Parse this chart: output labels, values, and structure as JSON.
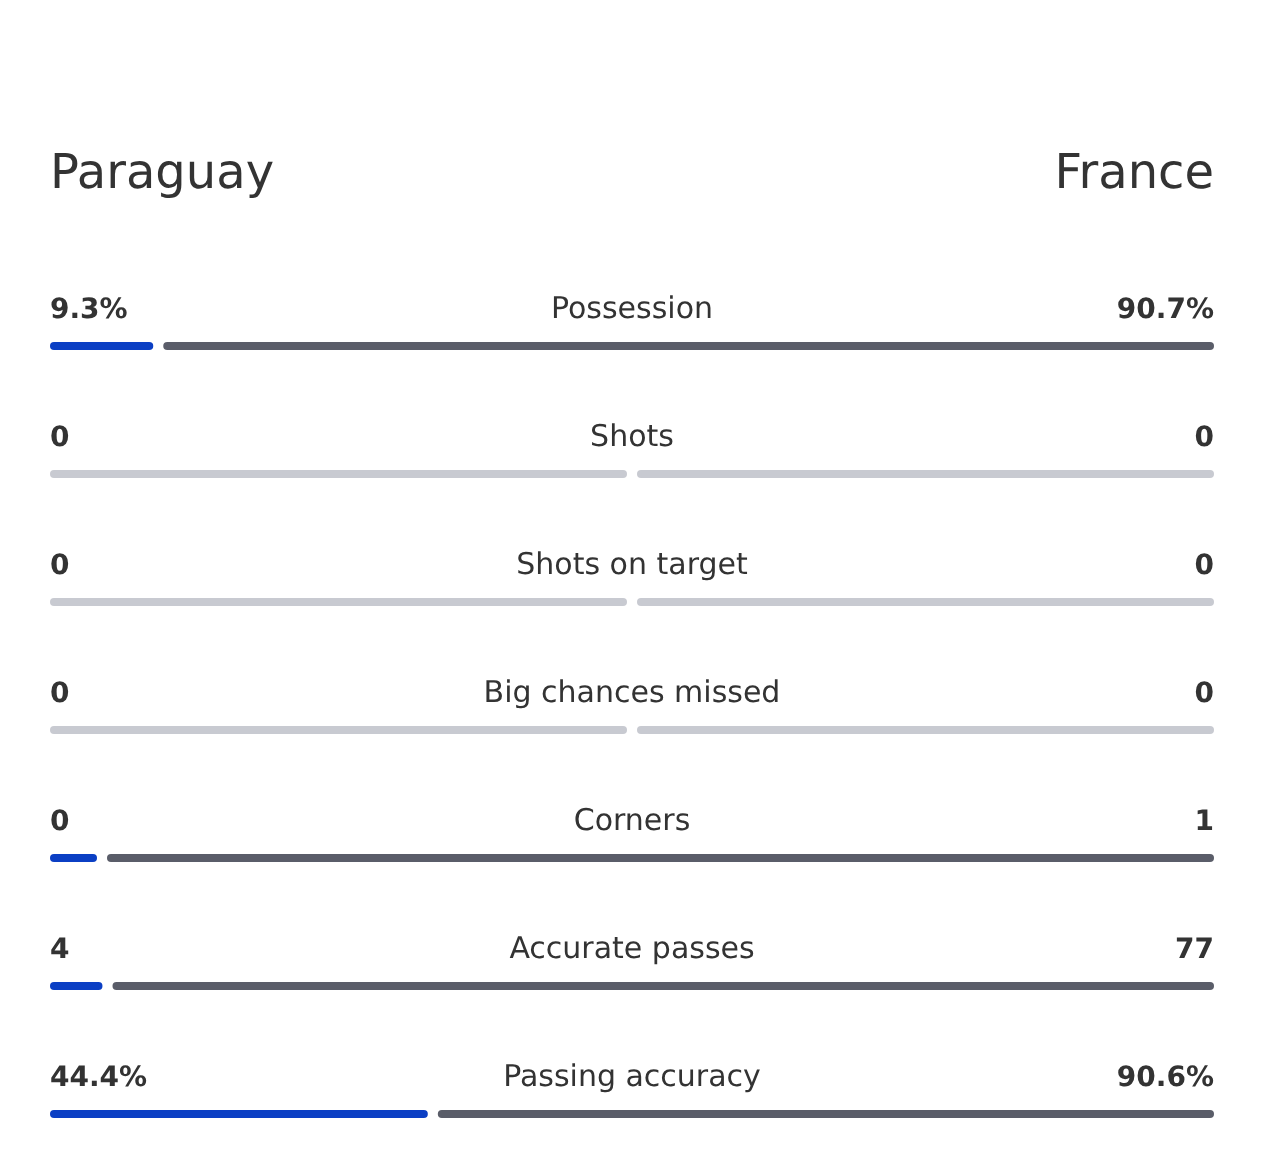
{
  "chart_data": {
    "type": "other",
    "data_labels": true,
    "categories": [
      "Possession",
      "Shots",
      "Shots on target",
      "Big chances missed",
      "Corners",
      "Accurate passes",
      "Passing accuracy"
    ],
    "series": [
      {
        "name": "Paraguay",
        "colors": [
          "#0b3fc4",
          "#c8cad1",
          "#c8cad1",
          "#c8cad1",
          "#0b3fc4",
          "#0b3fc4",
          "#0b3fc4"
        ],
        "values": [
          9.3,
          0,
          0,
          0,
          0,
          4,
          44.4
        ],
        "value_labels": [
          "9.3%",
          "0",
          "0",
          "0",
          "0",
          "4",
          "44.4%"
        ]
      },
      {
        "name": "France",
        "colors": [
          "#5a5d69",
          "#c8cad1",
          "#c8cad1",
          "#c8cad1",
          "#5a5d69",
          "#5a5d69",
          "#5a5d69"
        ],
        "values": [
          90.7,
          0,
          0,
          0,
          1,
          77,
          90.6
        ],
        "value_labels": [
          "90.7%",
          "0",
          "0",
          "0",
          "1",
          "77",
          "90.6%"
        ]
      }
    ]
  }
}
